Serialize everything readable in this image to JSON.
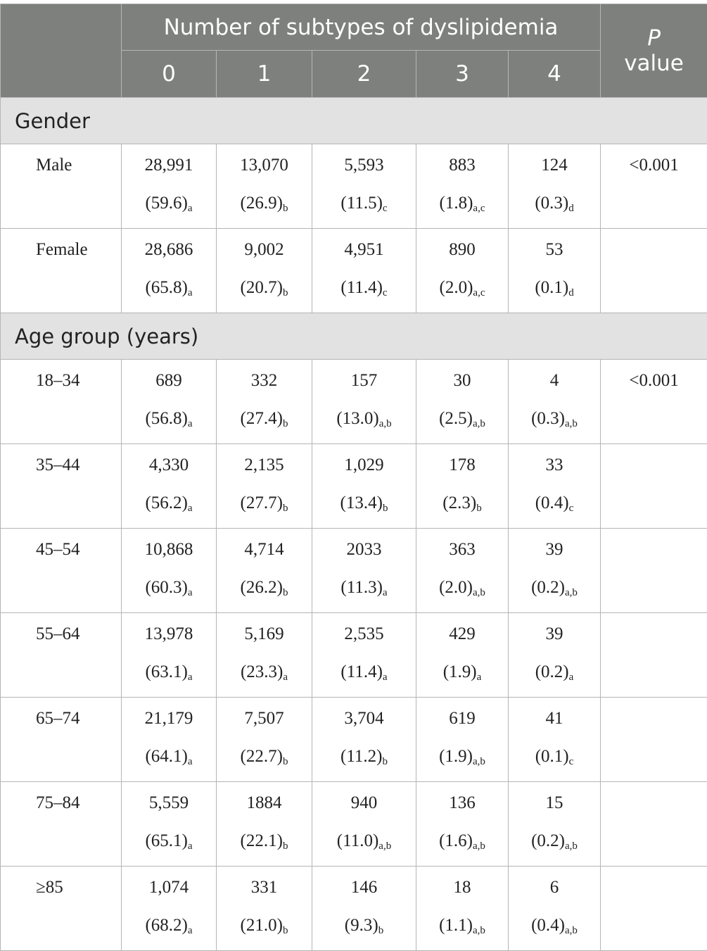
{
  "header": {
    "group_title": "Number of subtypes of dyslipidemia",
    "columns": [
      "0",
      "1",
      "2",
      "3",
      "4"
    ],
    "p_symbol": "P",
    "p_word": "value"
  },
  "sections": [
    {
      "title": "Gender",
      "rows": [
        {
          "label": "Male",
          "p": "<0.001",
          "cells": [
            {
              "n": "28,991",
              "pct": "(59.6)",
              "sub": "a"
            },
            {
              "n": "13,070",
              "pct": "(26.9)",
              "sub": "b"
            },
            {
              "n": "5,593",
              "pct": "(11.5)",
              "sub": "c"
            },
            {
              "n": "883",
              "pct": "(1.8)",
              "sub": "a,c"
            },
            {
              "n": "124",
              "pct": "(0.3)",
              "sub": "d"
            }
          ]
        },
        {
          "label": "Female",
          "cells": [
            {
              "n": "28,686",
              "pct": "(65.8)",
              "sub": "a"
            },
            {
              "n": "9,002",
              "pct": "(20.7)",
              "sub": "b"
            },
            {
              "n": "4,951",
              "pct": "(11.4)",
              "sub": "c"
            },
            {
              "n": "890",
              "pct": "(2.0)",
              "sub": "a,c"
            },
            {
              "n": "53",
              "pct": "(0.1)",
              "sub": "d"
            }
          ]
        }
      ]
    },
    {
      "title": "Age group (years)",
      "rows": [
        {
          "label": "18–34",
          "p": "<0.001",
          "cells": [
            {
              "n": "689",
              "pct": "(56.8)",
              "sub": "a"
            },
            {
              "n": "332",
              "pct": "(27.4)",
              "sub": "b"
            },
            {
              "n": "157",
              "pct": "(13.0)",
              "sub": "a,b"
            },
            {
              "n": "30",
              "pct": "(2.5)",
              "sub": "a,b"
            },
            {
              "n": "4",
              "pct": "(0.3)",
              "sub": "a,b"
            }
          ]
        },
        {
          "label": "35–44",
          "cells": [
            {
              "n": "4,330",
              "pct": "(56.2)",
              "sub": "a"
            },
            {
              "n": "2,135",
              "pct": "(27.7)",
              "sub": "b"
            },
            {
              "n": "1,029",
              "pct": "(13.4)",
              "sub": "b"
            },
            {
              "n": "178",
              "pct": "(2.3)",
              "sub": "b"
            },
            {
              "n": "33",
              "pct": "(0.4)",
              "sub": "c"
            }
          ]
        },
        {
          "label": "45–54",
          "cells": [
            {
              "n": "10,868",
              "pct": "(60.3)",
              "sub": "a"
            },
            {
              "n": "4,714",
              "pct": "(26.2)",
              "sub": "b"
            },
            {
              "n": "2033",
              "pct": "(11.3)",
              "sub": "a"
            },
            {
              "n": "363",
              "pct": "(2.0)",
              "sub": "a,b"
            },
            {
              "n": "39",
              "pct": "(0.2)",
              "sub": "a,b"
            }
          ]
        },
        {
          "label": "55–64",
          "cells": [
            {
              "n": "13,978",
              "pct": "(63.1)",
              "sub": "a"
            },
            {
              "n": "5,169",
              "pct": "(23.3)",
              "sub": "a"
            },
            {
              "n": "2,535",
              "pct": "(11.4)",
              "sub": "a"
            },
            {
              "n": "429",
              "pct": "(1.9)",
              "sub": "a"
            },
            {
              "n": "39",
              "pct": "(0.2)",
              "sub": "a"
            }
          ]
        },
        {
          "label": "65–74",
          "cells": [
            {
              "n": "21,179",
              "pct": "(64.1)",
              "sub": "a"
            },
            {
              "n": "7,507",
              "pct": "(22.7)",
              "sub": "b"
            },
            {
              "n": "3,704",
              "pct": "(11.2)",
              "sub": "b"
            },
            {
              "n": "619",
              "pct": "(1.9)",
              "sub": "a,b"
            },
            {
              "n": "41",
              "pct": "(0.1)",
              "sub": "c"
            }
          ]
        },
        {
          "label": "75–84",
          "cells": [
            {
              "n": "5,559",
              "pct": "(65.1)",
              "sub": "a"
            },
            {
              "n": "1884",
              "pct": "(22.1)",
              "sub": "b"
            },
            {
              "n": "940",
              "pct": "(11.0)",
              "sub": "a,b"
            },
            {
              "n": "136",
              "pct": "(1.6)",
              "sub": "a,b"
            },
            {
              "n": "15",
              "pct": "(0.2)",
              "sub": "a,b"
            }
          ]
        },
        {
          "label": "≥85",
          "cells": [
            {
              "n": "1,074",
              "pct": "(68.2)",
              "sub": "a"
            },
            {
              "n": "331",
              "pct": "(21.0)",
              "sub": "b"
            },
            {
              "n": "146",
              "pct": "(9.3)",
              "sub": "b"
            },
            {
              "n": "18",
              "pct": "(1.1)",
              "sub": "a,b"
            },
            {
              "n": "6",
              "pct": "(0.4)",
              "sub": "a,b"
            }
          ]
        }
      ]
    }
  ]
}
